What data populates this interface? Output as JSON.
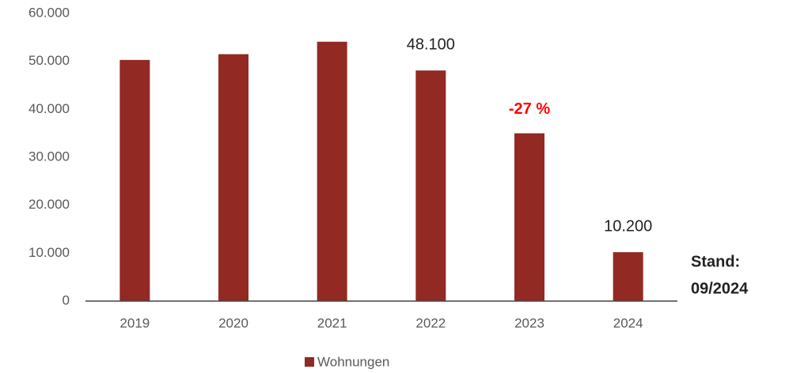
{
  "chart_data": {
    "type": "bar",
    "categories": [
      "2019",
      "2020",
      "2021",
      "2022",
      "2023",
      "2024"
    ],
    "series": [
      {
        "name": "Wohnungen",
        "color": "#922923",
        "values": [
          50300,
          51500,
          54100,
          48100,
          35000,
          10200
        ],
        "value_labels": [
          null,
          null,
          null,
          "48.100",
          null,
          "10.200"
        ]
      }
    ],
    "ylim": [
      0,
      60000
    ],
    "yticks": [
      0,
      {
        "value": 10000,
        "label": "10.000"
      },
      {
        "value": 20000,
        "label": "20.000"
      },
      {
        "value": 30000,
        "label": "30.000"
      },
      {
        "value": 40000,
        "label": "40.000"
      },
      {
        "value": 50000,
        "label": "50.000"
      },
      {
        "value": 60000,
        "label": "60.000"
      }
    ],
    "annotations": [
      "-27 %",
      "Stand:",
      "09/2024"
    ],
    "grid": false,
    "legend": "bottom"
  }
}
